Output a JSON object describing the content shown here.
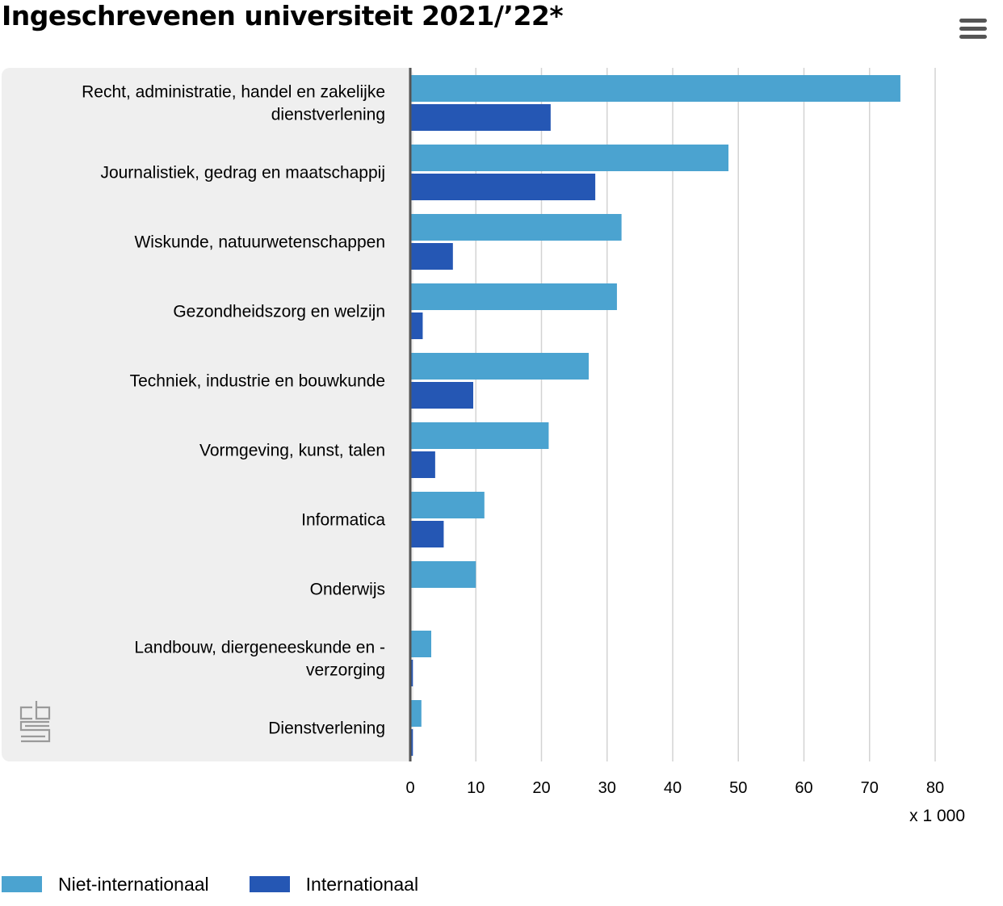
{
  "header": {
    "title": "Ingeschrevenen universiteit 2021/’22*",
    "menu_icon": "hamburger-icon"
  },
  "logo": {
    "icon": "cbs-logo-icon"
  },
  "colors": {
    "niet_internationaal": "#4ba3d0",
    "internationaal": "#2557b4",
    "plot_background": "#efefef",
    "gridline": "#d3d3d3",
    "axis": "#555555"
  },
  "chart_data": {
    "type": "bar",
    "orientation": "horizontal",
    "title": "Ingeschrevenen universiteit 2021/’22*",
    "unit_label": "x 1 000",
    "categories": [
      "Recht, administratie, handel en zakelijke dienstverlening",
      "Journalistiek, gedrag en maatschappij",
      "Wiskunde, natuurwetenschappen",
      "Gezondheidszorg en welzijn",
      "Techniek, industrie en bouwkunde",
      "Vormgeving, kunst, talen",
      "Informatica",
      "Onderwijs",
      "Landbouw, diergeneeskunde en -verzorging",
      "Dienstverlening"
    ],
    "category_lines": [
      [
        "Recht, administratie, handel en zakelijke",
        "dienstverlening"
      ],
      [
        "Journalistiek, gedrag en maatschappij"
      ],
      [
        "Wiskunde, natuurwetenschappen"
      ],
      [
        "Gezondheidszorg en welzijn"
      ],
      [
        "Techniek, industrie en bouwkunde"
      ],
      [
        "Vormgeving, kunst, talen"
      ],
      [
        "Informatica"
      ],
      [
        "Onderwijs"
      ],
      [
        "Landbouw, diergeneeskunde en -",
        "verzorging"
      ],
      [
        "Dienstverlening"
      ]
    ],
    "series": [
      {
        "name": "Niet-internationaal",
        "color": "#4ba3d0",
        "values": [
          74.7,
          48.5,
          32.2,
          31.5,
          27.2,
          21.1,
          11.3,
          10.0,
          3.2,
          1.7
        ]
      },
      {
        "name": "Internationaal",
        "color": "#2557b4",
        "values": [
          21.4,
          28.2,
          6.5,
          1.9,
          9.6,
          3.8,
          5.1,
          0.0,
          0.4,
          0.4
        ]
      }
    ],
    "xlim": [
      0,
      80
    ],
    "xticks": [
      0,
      10,
      20,
      30,
      40,
      50,
      60,
      70,
      80
    ],
    "grid": true,
    "legend_position": "bottom-left"
  }
}
